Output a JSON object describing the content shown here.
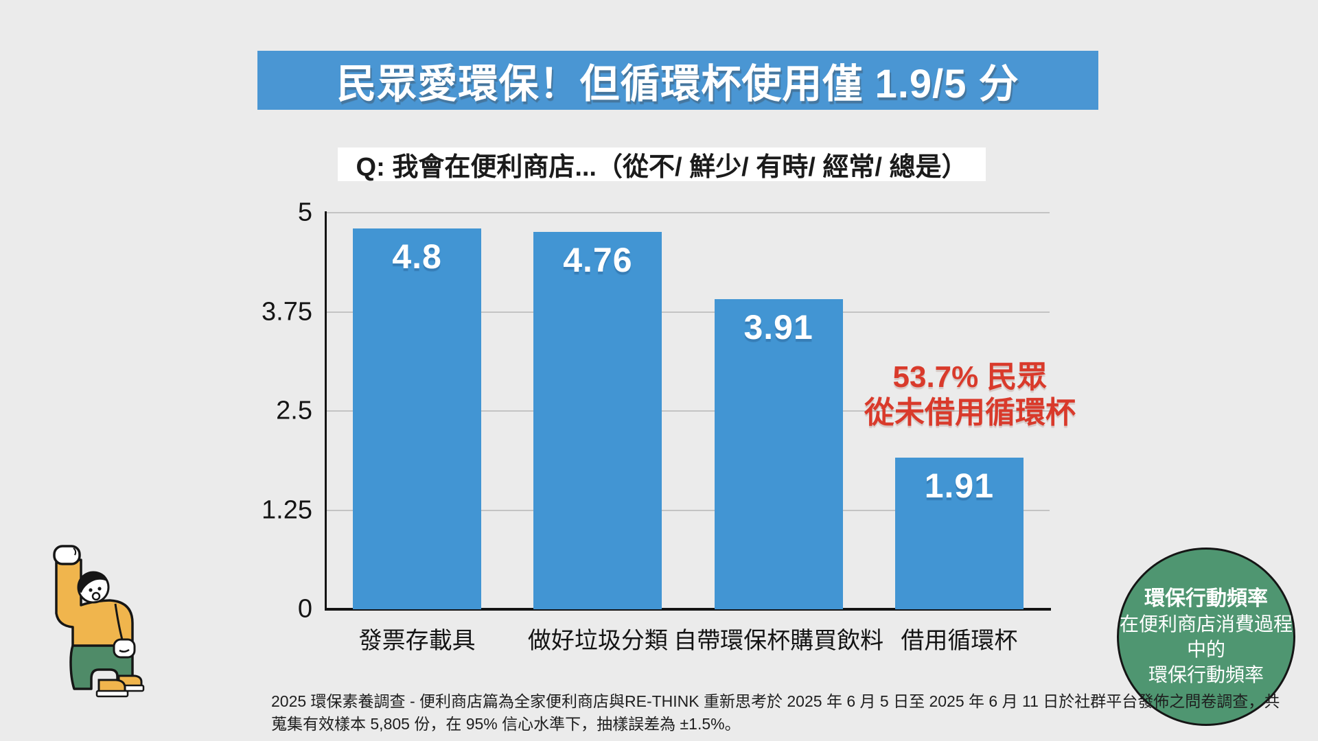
{
  "title": {
    "text": "民眾愛環保！但循環杯使用僅 1.9/5 分"
  },
  "question": {
    "text": "Q: 我會在便利商店...（從不/ 鮮少/ 有時/ 經常/ 總是）"
  },
  "chart_data": {
    "type": "bar",
    "title": "Q: 我會在便利商店...（從不/ 鮮少/ 有時/ 經常/ 總是）",
    "categories": [
      "發票存載具",
      "做好垃圾分類",
      "自帶環保杯購買飲料",
      "借用循環杯"
    ],
    "values": [
      4.8,
      4.76,
      3.91,
      1.91
    ],
    "value_labels": [
      "4.8",
      "4.76",
      "3.91",
      "1.91"
    ],
    "xlabel": "",
    "ylabel": "",
    "ylim": [
      0,
      5
    ],
    "yticks": [
      0,
      1.25,
      2.5,
      3.75,
      5
    ],
    "ytick_labels": [
      "0",
      "1.25",
      "2.5",
      "3.75",
      "5"
    ],
    "grid": true,
    "legend": "none",
    "bar_color": "#4295d3"
  },
  "annotation": {
    "line1": "53.7% 民眾",
    "line2": "從未借用循環杯",
    "color": "#d93a2b"
  },
  "badge": {
    "line1": "環保行動頻率",
    "line2": "在便利商店消費過程",
    "line3": "中的",
    "line4": "環保行動頻率",
    "bg_color": "#4f9671"
  },
  "footer": {
    "line1": "2025 環保素養調查 - 便利商店篇為全家便利商店與RE-THINK 重新思考於 2025 年 6 月 5 日至 2025 年 6 月 11 日於社群平台發佈之問卷調查，共",
    "line2": "蒐集有效樣本 5,805 份，在 95% 信心水準下，抽樣誤差為 ±1.5%。"
  },
  "colors": {
    "background": "#ebebeb",
    "banner_blue": "#4a96d3",
    "bar_blue": "#4295d3",
    "annotation_red": "#d93a2b",
    "badge_green": "#4f9671",
    "axis_black": "#141414",
    "gridline_gray": "#c3c3c3"
  }
}
